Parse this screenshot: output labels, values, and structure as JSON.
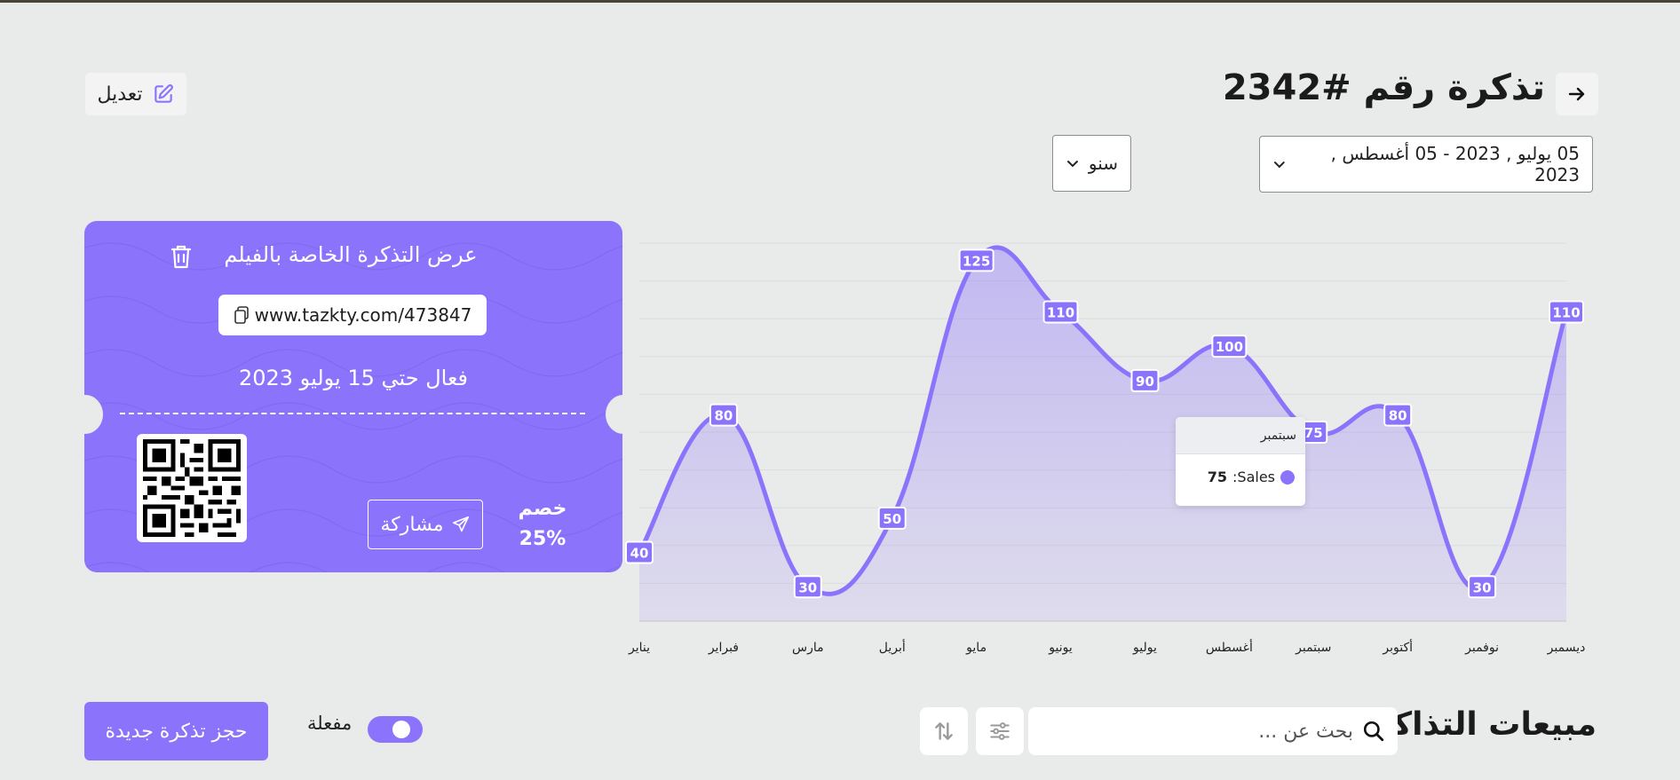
{
  "header": {
    "title": "تذكرة رقم #2342",
    "edit_label": "تعديل"
  },
  "filters": {
    "date_range": "05 يوليو , 2023 - 05 أغسطس , 2023",
    "period": "سنو"
  },
  "ticket": {
    "title": "عرض التذكرة الخاصة بالفيلم",
    "link": "www.tazkty.com/473847",
    "valid_until": "فعال حتي 15 يوليو 2023",
    "share_label": "مشاركة",
    "discount_label": "خصم",
    "discount_value": "25%",
    "accent_color": "#8b74fb"
  },
  "chart_data": {
    "type": "area",
    "categories": [
      "يناير",
      "فبراير",
      "مارس",
      "أبريل",
      "مايو",
      "يونيو",
      "يوليو",
      "أغسطس",
      "سبتمبر",
      "أكتوبر",
      "نوفمبر",
      "ديسمبر"
    ],
    "series": [
      {
        "name": "Sales",
        "values": [
          40,
          80,
          30,
          50,
          125,
          110,
          90,
          100,
          75,
          80,
          30,
          110
        ]
      }
    ],
    "ylim": [
      20,
      130
    ],
    "grid": true,
    "color": "#8b74fb",
    "tooltip": {
      "category": "سبتمبر",
      "series": "Sales",
      "value": 75
    }
  },
  "tooltip": {
    "title": "سبتمبر",
    "label": "Sales:",
    "value": "75"
  },
  "sales": {
    "title": "مبيعات التذاكر",
    "search_placeholder": "بحث عن ...",
    "toggle_label": "مفعلة",
    "toggle_on": true,
    "book_label": "حجز تذكرة جديدة"
  }
}
